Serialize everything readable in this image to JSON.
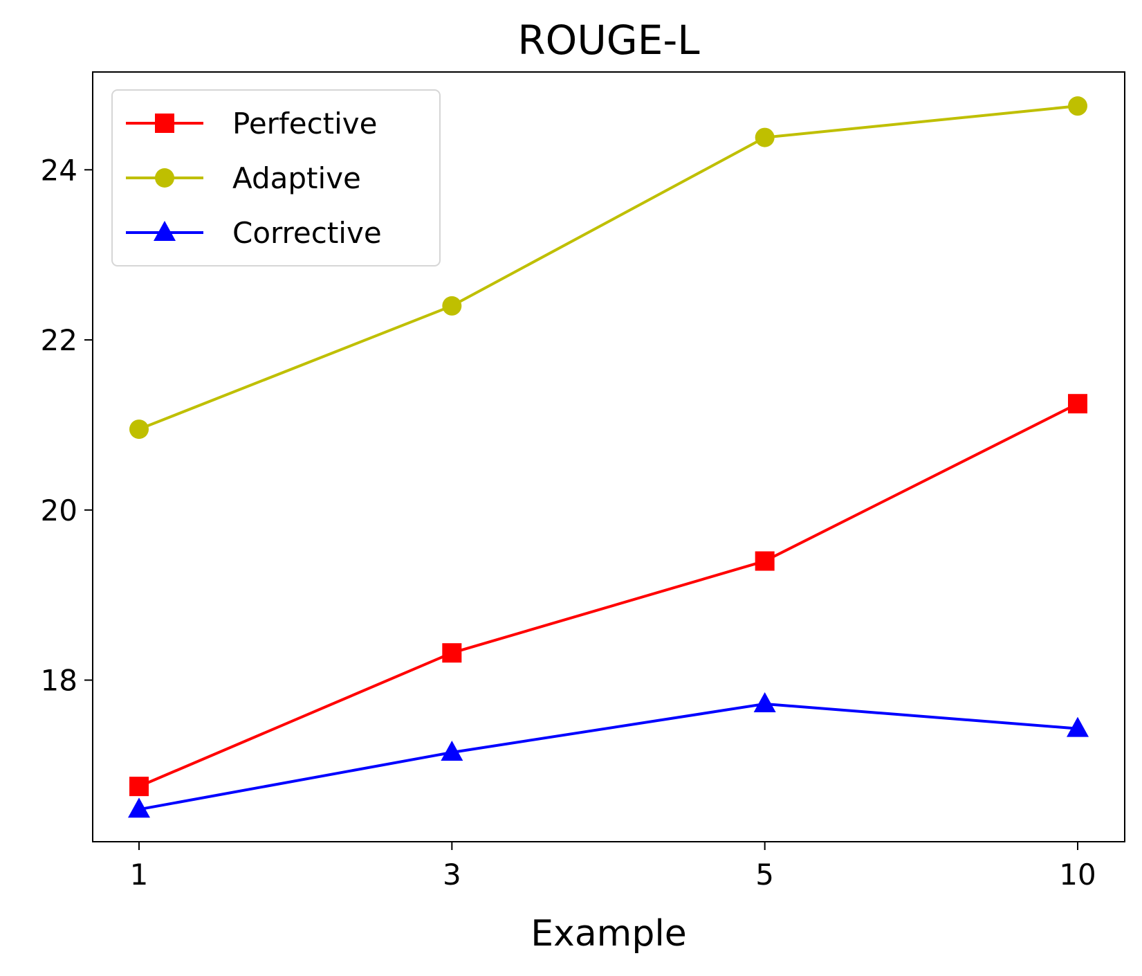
{
  "chart_data": {
    "type": "line",
    "title": "ROUGE-L",
    "xlabel": "Example",
    "ylabel": "",
    "categories": [
      "1",
      "3",
      "5",
      "10"
    ],
    "ylim": [
      16.1,
      25.15
    ],
    "yticks": [
      18,
      20,
      22,
      24
    ],
    "grid": false,
    "legend_position": "top-left",
    "series": [
      {
        "name": "Perfective",
        "color": "#ff0000",
        "marker": "square",
        "values": [
          16.75,
          18.32,
          19.4,
          21.25
        ]
      },
      {
        "name": "Adaptive",
        "color": "#bfbf00",
        "marker": "circle",
        "values": [
          20.95,
          22.4,
          24.38,
          24.75
        ]
      },
      {
        "name": "Corrective",
        "color": "#0000ff",
        "marker": "triangle",
        "values": [
          16.48,
          17.15,
          17.72,
          17.43
        ]
      }
    ]
  }
}
